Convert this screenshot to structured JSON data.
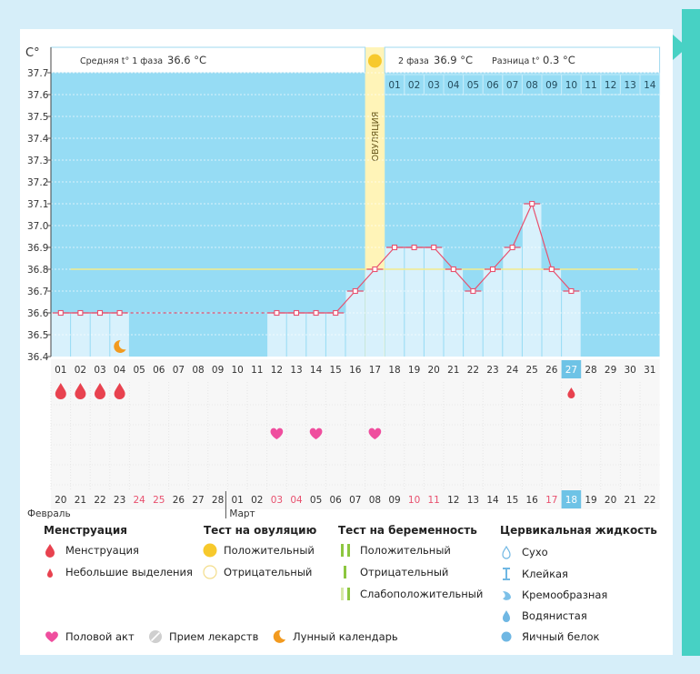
{
  "header": {
    "unit": "C°",
    "phase1_label": "Средняя t° 1 фаза",
    "phase1_value": "36.6 °C",
    "phase2_label": "2 фаза",
    "phase2_value": "36.9 °C",
    "diff_label": "Разница t°",
    "diff_value": "0.3 °C",
    "ovulation_label": "ОВУЛЯЦИЯ"
  },
  "phase2_days": [
    "01",
    "02",
    "03",
    "04",
    "05",
    "06",
    "07",
    "08",
    "09",
    "10",
    "11",
    "12",
    "13",
    "14"
  ],
  "cycle_days": [
    "01",
    "02",
    "03",
    "04",
    "05",
    "06",
    "07",
    "08",
    "09",
    "10",
    "11",
    "12",
    "13",
    "14",
    "15",
    "16",
    "17",
    "18",
    "19",
    "20",
    "21",
    "22",
    "23",
    "24",
    "25",
    "26",
    "27",
    "28",
    "29",
    "30",
    "31"
  ],
  "calendar_dates": [
    "20",
    "21",
    "22",
    "23",
    "24",
    "25",
    "26",
    "27",
    "28",
    "01",
    "02",
    "03",
    "04",
    "05",
    "06",
    "07",
    "08",
    "09",
    "10",
    "11",
    "12",
    "13",
    "14",
    "15",
    "16",
    "17",
    "18",
    "19",
    "20",
    "21",
    "22"
  ],
  "calendar_red_indices": [
    4,
    5,
    11,
    12,
    18,
    19,
    25
  ],
  "months": {
    "feb": "Февраль",
    "mar": "Март"
  },
  "today_index": 26,
  "colors": {
    "sky": "#96dcf4",
    "bar": "#d8f1fc",
    "ovulation": "#fff4b8",
    "line": "#e8506e",
    "coverline": "#f3eb8c",
    "drop": "#e8424f",
    "heart": "#ef4e9e",
    "today": "#6ec3e6"
  },
  "chart_data": {
    "type": "line",
    "title": "",
    "ylabel": "C°",
    "xlabel": "",
    "ylim": [
      36.4,
      37.7
    ],
    "yticks": [
      "36.4",
      "36.5",
      "36.6",
      "36.7",
      "36.8",
      "36.9",
      "37.0",
      "37.1",
      "37.2",
      "37.3",
      "37.4",
      "37.5",
      "37.6",
      "37.7"
    ],
    "coverline": 36.8,
    "ovulation_day": 17,
    "series": [
      {
        "name": "temperature",
        "points": [
          {
            "day": 1,
            "value": 36.6
          },
          {
            "day": 2,
            "value": 36.6
          },
          {
            "day": 3,
            "value": 36.6
          },
          {
            "day": 4,
            "value": 36.6
          },
          {
            "day": 12,
            "value": 36.6
          },
          {
            "day": 13,
            "value": 36.6
          },
          {
            "day": 14,
            "value": 36.6
          },
          {
            "day": 15,
            "value": 36.6
          },
          {
            "day": 16,
            "value": 36.7
          },
          {
            "day": 17,
            "value": 36.8
          },
          {
            "day": 18,
            "value": 36.9
          },
          {
            "day": 19,
            "value": 36.9
          },
          {
            "day": 20,
            "value": 36.9
          },
          {
            "day": 21,
            "value": 36.8
          },
          {
            "day": 22,
            "value": 36.7
          },
          {
            "day": 23,
            "value": 36.8
          },
          {
            "day": 24,
            "value": 36.9
          },
          {
            "day": 25,
            "value": 37.1
          },
          {
            "day": 26,
            "value": 36.8
          },
          {
            "day": 27,
            "value": 36.7
          }
        ]
      }
    ],
    "menstruation_days": [
      1,
      2,
      3,
      4
    ],
    "spotting_days": [
      27
    ],
    "intercourse_days": [
      12,
      14,
      17
    ],
    "moon_days": [
      4
    ]
  },
  "legend": {
    "menstruation": {
      "title": "Менструация",
      "items": [
        "Менструация",
        "Небольшие выделения"
      ]
    },
    "ovulation_test": {
      "title": "Тест на овуляцию",
      "items": [
        "Положительный",
        "Отрицательный"
      ]
    },
    "pregnancy_test": {
      "title": "Тест на беременность",
      "items": [
        "Положительный",
        "Отрицательный",
        "Слабоположительный"
      ]
    },
    "cervical": {
      "title": "Цервикальная жидкость",
      "items": [
        "Сухо",
        "Клейкая",
        "Кремообразная",
        "Водянистая",
        "Яичный белок"
      ]
    },
    "bottom": [
      "Половой акт",
      "Прием лекарств",
      "Лунный календарь"
    ]
  }
}
